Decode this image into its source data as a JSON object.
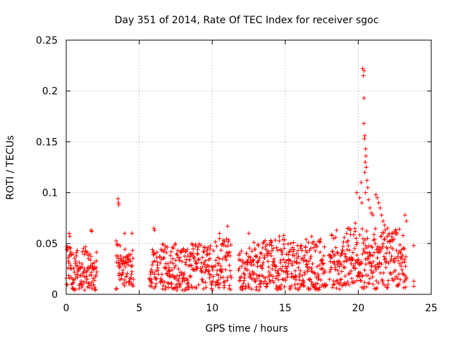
{
  "chart_data": {
    "type": "scatter",
    "title": "Day 351 of 2014, Rate Of TEC Index for receiver sgoc",
    "xlabel": "GPS time / hours",
    "ylabel": "ROTI / TECUs",
    "xlim": [
      0,
      25
    ],
    "ylim": [
      0,
      0.25
    ],
    "xticks": [
      0,
      5,
      10,
      15,
      20,
      25
    ],
    "xtick_labels": [
      "0",
      "5",
      "10",
      "15",
      "20",
      "25"
    ],
    "yticks": [
      0,
      0.05,
      0.1,
      0.15,
      0.2,
      0.25
    ],
    "ytick_labels": [
      "0",
      "0.05",
      "0.1",
      "0.15",
      "0.2",
      "0.25"
    ],
    "grid": true,
    "marker": "+",
    "color": "#ff0000",
    "series": [
      {
        "name": "ROTI",
        "segments": [
          {
            "start": 0.0,
            "end": 2.1,
            "base": 0.004,
            "typ": 0.035,
            "peak": 0.05
          },
          {
            "start": 3.4,
            "end": 4.6,
            "base": 0.005,
            "typ": 0.035,
            "peak": 0.055
          },
          {
            "start": 5.7,
            "end": 6.3,
            "base": 0.005,
            "typ": 0.03,
            "peak": 0.045
          },
          {
            "start": 6.4,
            "end": 9.1,
            "base": 0.004,
            "typ": 0.035,
            "peak": 0.05
          },
          {
            "start": 9.2,
            "end": 10.1,
            "base": 0.004,
            "typ": 0.035,
            "peak": 0.05
          },
          {
            "start": 10.2,
            "end": 11.3,
            "base": 0.004,
            "typ": 0.038,
            "peak": 0.055
          },
          {
            "start": 11.8,
            "end": 17.8,
            "base": 0.004,
            "typ": 0.038,
            "peak": 0.055
          },
          {
            "start": 18.0,
            "end": 23.3,
            "base": 0.005,
            "typ": 0.045,
            "peak": 0.065
          }
        ],
        "highlights": [
          {
            "x": 0.2,
            "y": 0.06
          },
          {
            "x": 0.25,
            "y": 0.057
          },
          {
            "x": 1.7,
            "y": 0.063
          },
          {
            "x": 1.75,
            "y": 0.062
          },
          {
            "x": 3.55,
            "y": 0.094
          },
          {
            "x": 3.58,
            "y": 0.09
          },
          {
            "x": 3.6,
            "y": 0.088
          },
          {
            "x": 4.0,
            "y": 0.06
          },
          {
            "x": 4.5,
            "y": 0.06
          },
          {
            "x": 6.0,
            "y": 0.065
          },
          {
            "x": 6.05,
            "y": 0.063
          },
          {
            "x": 10.5,
            "y": 0.06
          },
          {
            "x": 11.05,
            "y": 0.067
          },
          {
            "x": 12.5,
            "y": 0.06
          },
          {
            "x": 14.6,
            "y": 0.057
          },
          {
            "x": 14.9,
            "y": 0.058
          },
          {
            "x": 16.8,
            "y": 0.057
          },
          {
            "x": 19.3,
            "y": 0.065
          },
          {
            "x": 19.8,
            "y": 0.07
          },
          {
            "x": 19.9,
            "y": 0.1
          },
          {
            "x": 20.1,
            "y": 0.095
          },
          {
            "x": 20.2,
            "y": 0.11
          },
          {
            "x": 20.25,
            "y": 0.09
          },
          {
            "x": 20.3,
            "y": 0.222
          },
          {
            "x": 20.35,
            "y": 0.215
          },
          {
            "x": 20.4,
            "y": 0.22
          },
          {
            "x": 20.4,
            "y": 0.193
          },
          {
            "x": 20.38,
            "y": 0.168
          },
          {
            "x": 20.45,
            "y": 0.156
          },
          {
            "x": 20.42,
            "y": 0.153
          },
          {
            "x": 20.5,
            "y": 0.143
          },
          {
            "x": 20.52,
            "y": 0.136
          },
          {
            "x": 20.48,
            "y": 0.13
          },
          {
            "x": 20.55,
            "y": 0.125
          },
          {
            "x": 20.45,
            "y": 0.12
          },
          {
            "x": 20.6,
            "y": 0.112
          },
          {
            "x": 20.65,
            "y": 0.105
          },
          {
            "x": 20.5,
            "y": 0.1
          },
          {
            "x": 20.7,
            "y": 0.093
          },
          {
            "x": 20.8,
            "y": 0.085
          },
          {
            "x": 20.9,
            "y": 0.08
          },
          {
            "x": 21.0,
            "y": 0.078
          },
          {
            "x": 21.2,
            "y": 0.098
          },
          {
            "x": 21.3,
            "y": 0.095
          },
          {
            "x": 21.4,
            "y": 0.09
          },
          {
            "x": 21.5,
            "y": 0.085
          },
          {
            "x": 21.6,
            "y": 0.078
          },
          {
            "x": 21.7,
            "y": 0.072
          },
          {
            "x": 21.8,
            "y": 0.068
          },
          {
            "x": 22.0,
            "y": 0.065
          },
          {
            "x": 22.3,
            "y": 0.06
          },
          {
            "x": 23.2,
            "y": 0.078
          },
          {
            "x": 23.3,
            "y": 0.072
          },
          {
            "x": 23.8,
            "y": 0.048
          },
          {
            "x": 23.8,
            "y": 0.013
          },
          {
            "x": 23.8,
            "y": 0.008
          }
        ]
      }
    ]
  }
}
